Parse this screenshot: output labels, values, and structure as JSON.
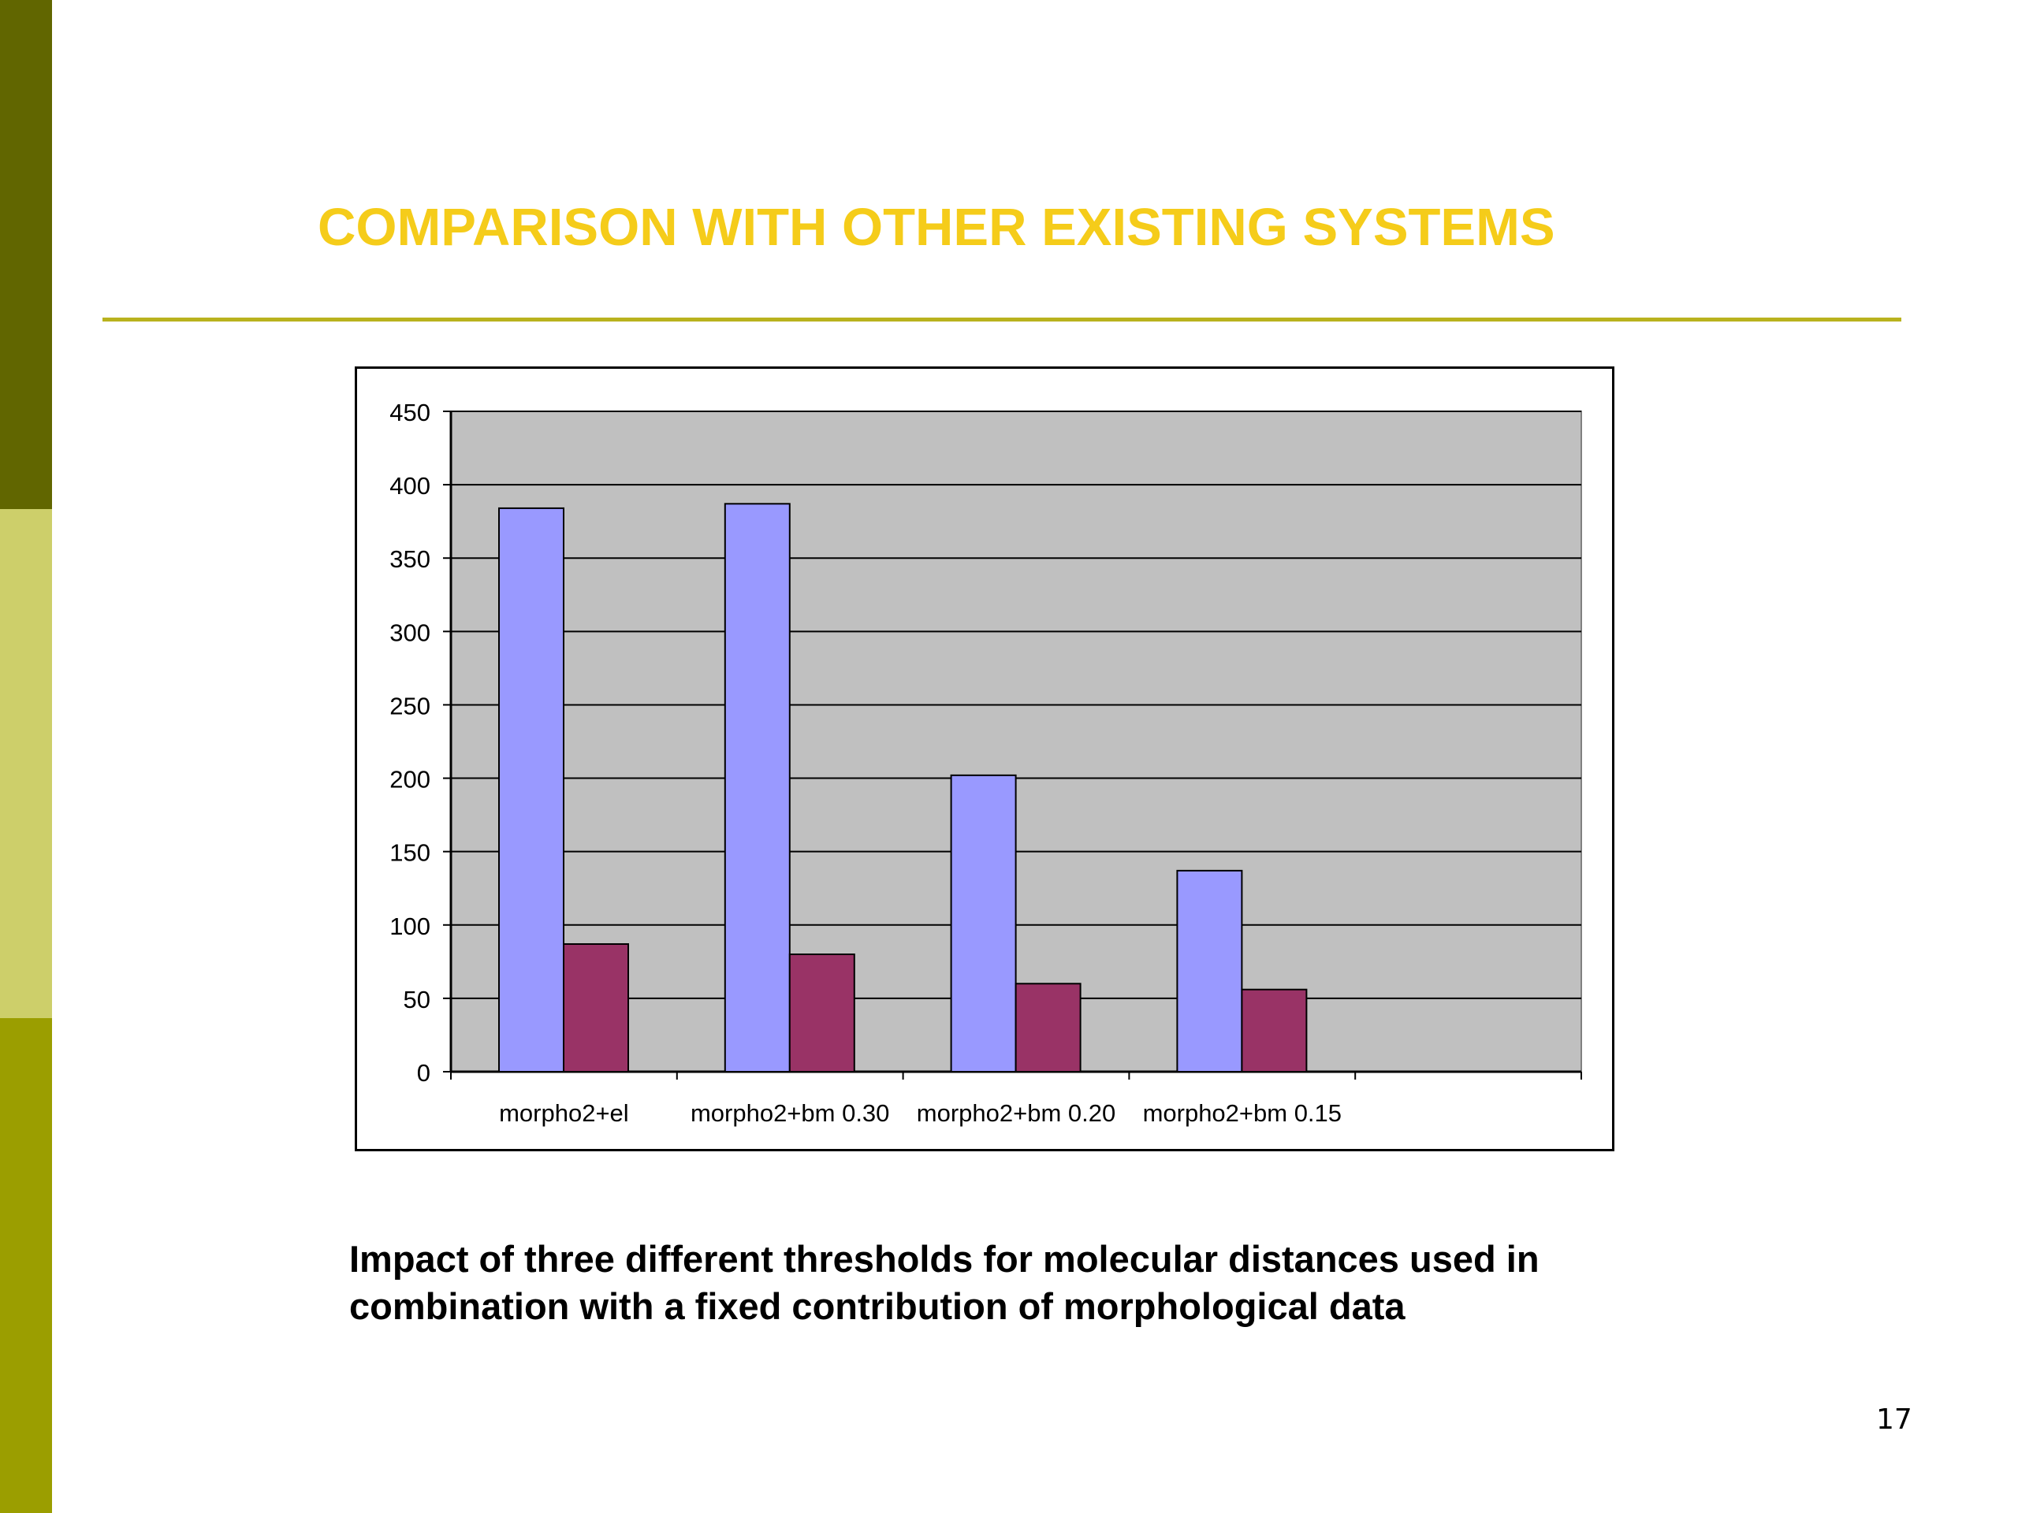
{
  "slide": {
    "title": "COMPARISON WITH OTHER EXISTING SYSTEMS",
    "caption_line1": "Impact of three different thresholds for molecular distances used in",
    "caption_line2": "combination with a fixed contribution of morphological data",
    "page_number": "17"
  },
  "colors": {
    "title": "#f5cc1a",
    "rule": "#b9b21e",
    "sidebar": [
      "#616600",
      "#cdcf6a",
      "#9b9e00"
    ],
    "plot_background": "#c0c0c0",
    "series": [
      "#9999ff",
      "#993366"
    ]
  },
  "chart_data": {
    "type": "bar",
    "title": "",
    "xlabel": "",
    "ylabel": "",
    "categories": [
      "morpho2+el",
      "morpho2+bm 0.30",
      "morpho2+bm 0.20",
      "morpho2+bm 0.15",
      ""
    ],
    "series": [
      {
        "values": [
          384,
          387,
          202,
          137,
          null
        ]
      },
      {
        "values": [
          87,
          80,
          60,
          56,
          null
        ]
      }
    ],
    "ylim": [
      0,
      450
    ],
    "yticks": [
      0,
      50,
      100,
      150,
      200,
      250,
      300,
      350,
      400,
      450
    ],
    "grid": true,
    "legend": "none"
  }
}
